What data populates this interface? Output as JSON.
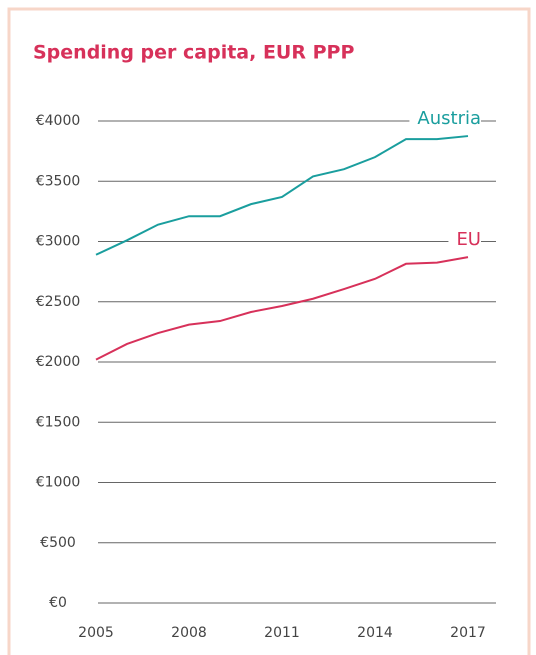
{
  "chart_data": {
    "type": "line",
    "title": "Spending per capita, EUR PPP",
    "x": [
      2005,
      2006,
      2007,
      2008,
      2009,
      2010,
      2011,
      2012,
      2013,
      2014,
      2015,
      2016,
      2017
    ],
    "series": [
      {
        "name": "Austria",
        "color": "#1a9e9e",
        "values": [
          2890,
          3010,
          3140,
          3210,
          3210,
          3310,
          3370,
          3540,
          3600,
          3700,
          3850,
          3850,
          3875
        ]
      },
      {
        "name": "EU",
        "color": "#d7315a",
        "values": [
          2020,
          2150,
          2240,
          2310,
          2340,
          2415,
          2465,
          2525,
          2605,
          2690,
          2815,
          2825,
          2870
        ]
      }
    ],
    "xlim": [
      2005,
      2017
    ],
    "xticks": [
      2005,
      2008,
      2011,
      2014,
      2017
    ],
    "ylim": [
      0,
      4000
    ],
    "yticks": [
      {
        "value": 0,
        "label": "€0"
      },
      {
        "value": 500,
        "label": "€500"
      },
      {
        "value": 1000,
        "label": "€1000"
      },
      {
        "value": 1500,
        "label": "€1500"
      },
      {
        "value": 2000,
        "label": "€2000"
      },
      {
        "value": 2500,
        "label": "€2500"
      },
      {
        "value": 3000,
        "label": "€3000"
      },
      {
        "value": 3500,
        "label": "€3500"
      },
      {
        "value": 4000,
        "label": "€4000"
      }
    ],
    "grid": true
  }
}
